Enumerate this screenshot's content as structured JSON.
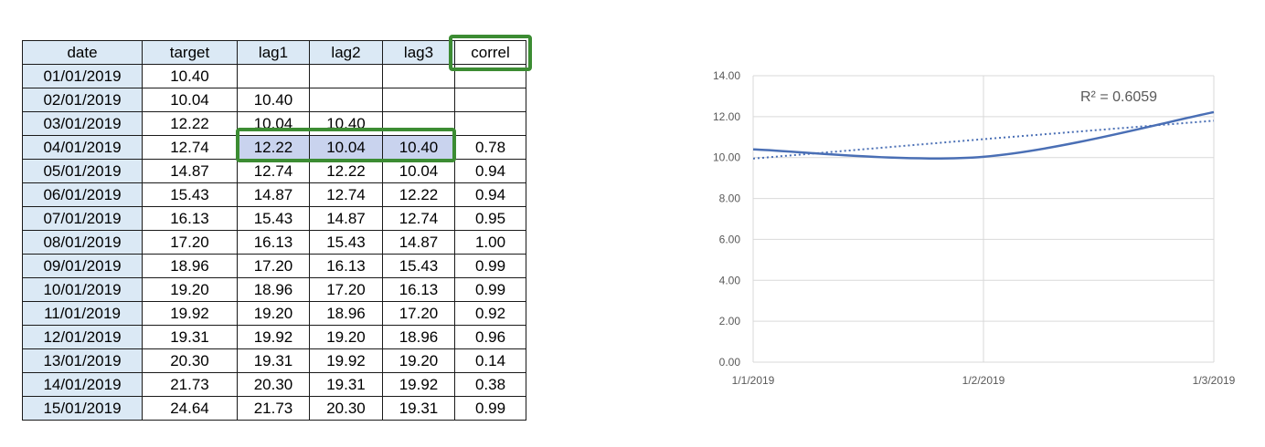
{
  "table": {
    "headers": [
      "date",
      "target",
      "lag1",
      "lag2",
      "lag3",
      "correl"
    ],
    "rows": [
      [
        "01/01/2019",
        "10.40",
        "",
        "",
        "",
        ""
      ],
      [
        "02/01/2019",
        "10.04",
        "10.40",
        "",
        "",
        ""
      ],
      [
        "03/01/2019",
        "12.22",
        "10.04",
        "10.40",
        "",
        ""
      ],
      [
        "04/01/2019",
        "12.74",
        "12.22",
        "10.04",
        "10.40",
        "0.78"
      ],
      [
        "05/01/2019",
        "14.87",
        "12.74",
        "12.22",
        "10.04",
        "0.94"
      ],
      [
        "06/01/2019",
        "15.43",
        "14.87",
        "12.74",
        "12.22",
        "0.94"
      ],
      [
        "07/01/2019",
        "16.13",
        "15.43",
        "14.87",
        "12.74",
        "0.95"
      ],
      [
        "08/01/2019",
        "17.20",
        "16.13",
        "15.43",
        "14.87",
        "1.00"
      ],
      [
        "09/01/2019",
        "18.96",
        "17.20",
        "16.13",
        "15.43",
        "0.99"
      ],
      [
        "10/01/2019",
        "19.20",
        "18.96",
        "17.20",
        "16.13",
        "0.99"
      ],
      [
        "11/01/2019",
        "19.92",
        "19.20",
        "18.96",
        "17.20",
        "0.92"
      ],
      [
        "12/01/2019",
        "19.31",
        "19.92",
        "19.20",
        "18.96",
        "0.96"
      ],
      [
        "13/01/2019",
        "20.30",
        "19.31",
        "19.92",
        "19.20",
        "0.14"
      ],
      [
        "14/01/2019",
        "21.73",
        "20.30",
        "19.31",
        "19.92",
        "0.38"
      ],
      [
        "15/01/2019",
        "24.64",
        "21.73",
        "20.30",
        "19.31",
        "0.99"
      ]
    ]
  },
  "colors": {
    "header_fill": "#dbe9f5",
    "highlight_fill": "#c9d3ee",
    "highlight_border": "#3c8c33",
    "series_line": "#4a6fb5",
    "gridline": "#d9d9d9"
  },
  "chart_data": {
    "type": "line",
    "x": [
      "1/1/2019",
      "1/2/2019",
      "1/3/2019"
    ],
    "series": [
      {
        "values": [
          10.4,
          10.04,
          12.22
        ],
        "style": "smooth-solid"
      },
      {
        "values": [
          9.95,
          10.9,
          11.8
        ],
        "style": "dotted-trendline"
      }
    ],
    "annotation": "R² = 0.6059",
    "ylim": [
      0,
      14
    ],
    "yticks": [
      "0.00",
      "2.00",
      "4.00",
      "6.00",
      "8.00",
      "10.00",
      "12.00",
      "14.00"
    ],
    "xticks": [
      "1/1/2019",
      "1/2/2019",
      "1/3/2019"
    ],
    "grid": true,
    "legend": "none"
  }
}
